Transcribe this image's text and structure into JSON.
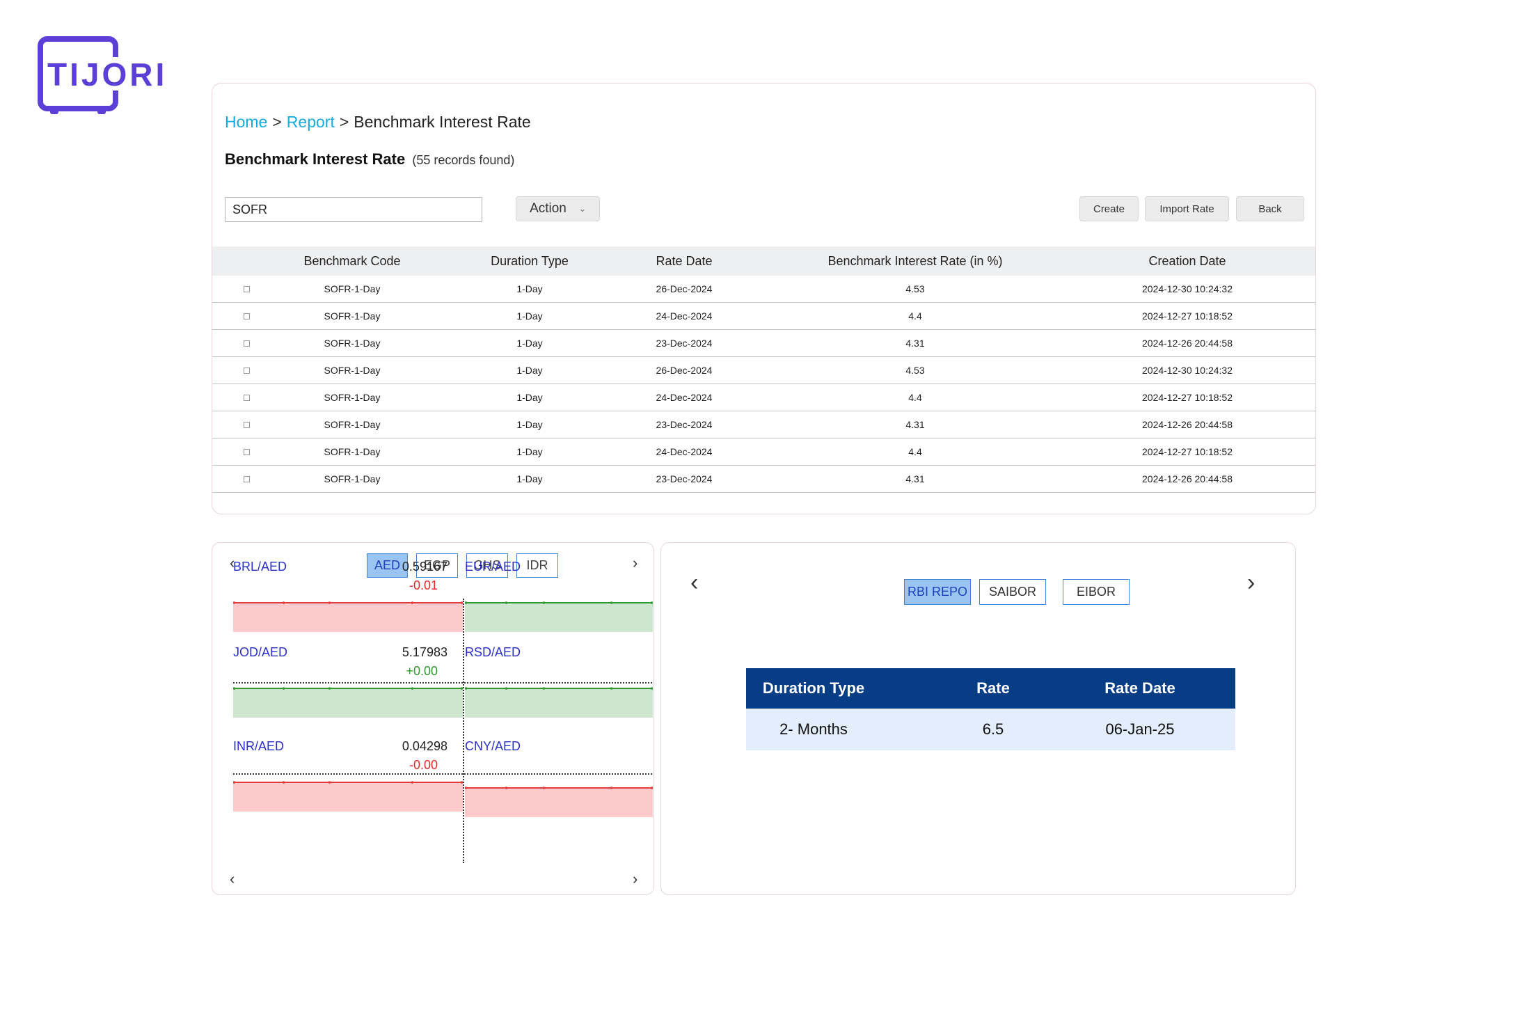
{
  "brand": {
    "name": "TIJORI",
    "color": "#5b3fd6"
  },
  "breadcrumb": {
    "home": "Home",
    "report": "Report",
    "current": "Benchmark Interest Rate",
    "separator": ">"
  },
  "page": {
    "title": "Benchmark Interest Rate",
    "count": "(55 records found)"
  },
  "search": {
    "value": "SOFR"
  },
  "toolbar": {
    "action_label": "Action",
    "create_label": "Create",
    "import_label": "Import Rate",
    "back_label": "Back"
  },
  "table": {
    "columns": [
      "Benchmark Code",
      "Duration Type",
      "Rate Date",
      "Benchmark Interest Rate (in %)",
      "Creation Date"
    ],
    "rows": [
      [
        "SOFR-1-Day",
        "1-Day",
        "26-Dec-2024",
        "4.53",
        "2024-12-30 10:24:32"
      ],
      [
        "SOFR-1-Day",
        "1-Day",
        "24-Dec-2024",
        "4.4",
        "2024-12-27 10:18:52"
      ],
      [
        "SOFR-1-Day",
        "1-Day",
        "23-Dec-2024",
        "4.31",
        "2024-12-26 20:44:58"
      ],
      [
        "SOFR-1-Day",
        "1-Day",
        "26-Dec-2024",
        "4.53",
        "2024-12-30 10:24:32"
      ],
      [
        "SOFR-1-Day",
        "1-Day",
        "24-Dec-2024",
        "4.4",
        "2024-12-27 10:18:52"
      ],
      [
        "SOFR-1-Day",
        "1-Day",
        "23-Dec-2024",
        "4.31",
        "2024-12-26 20:44:58"
      ],
      [
        "SOFR-1-Day",
        "1-Day",
        "24-Dec-2024",
        "4.4",
        "2024-12-27 10:18:52"
      ],
      [
        "SOFR-1-Day",
        "1-Day",
        "23-Dec-2024",
        "4.31",
        "2024-12-26 20:44:58"
      ]
    ]
  },
  "fx": {
    "tabs": [
      "AED",
      "EGP",
      "GHS",
      "IDR"
    ],
    "active_tab": "AED",
    "prev_icon": "chevron-left-icon",
    "next_icon": "chevron-right-icon",
    "cells": [
      {
        "pair": "BRL/AED",
        "rate": "0.59167",
        "change": "-0.01",
        "trend": "down"
      },
      {
        "pair": "EUR/AED",
        "rate": "",
        "change": "",
        "trend": "up"
      },
      {
        "pair": "JOD/AED",
        "rate": "5.17983",
        "change": "+0.00",
        "trend": "up"
      },
      {
        "pair": "RSD/AED",
        "rate": "",
        "change": "",
        "trend": "up"
      },
      {
        "pair": "INR/AED",
        "rate": "0.04298",
        "change": "-0.00",
        "trend": "down"
      },
      {
        "pair": "CNY/AED",
        "rate": "",
        "change": "",
        "trend": "down"
      }
    ],
    "colors": {
      "down_line": "#e23b3b",
      "down_fill": "#fccaca",
      "up_line": "#2e9a2e",
      "up_fill": "#cde6cd"
    }
  },
  "rates": {
    "tabs": [
      "RBI REPO",
      "SAIBOR",
      "EIBOR"
    ],
    "active_tab": "RBI REPO",
    "columns": [
      "Duration Type",
      "Rate",
      "Rate Date"
    ],
    "rows": [
      [
        "2- Months",
        "6.5",
        "06-Jan-25"
      ]
    ],
    "colors": {
      "header_bg": "#063d85",
      "row_bg": "#e3edfb"
    }
  }
}
